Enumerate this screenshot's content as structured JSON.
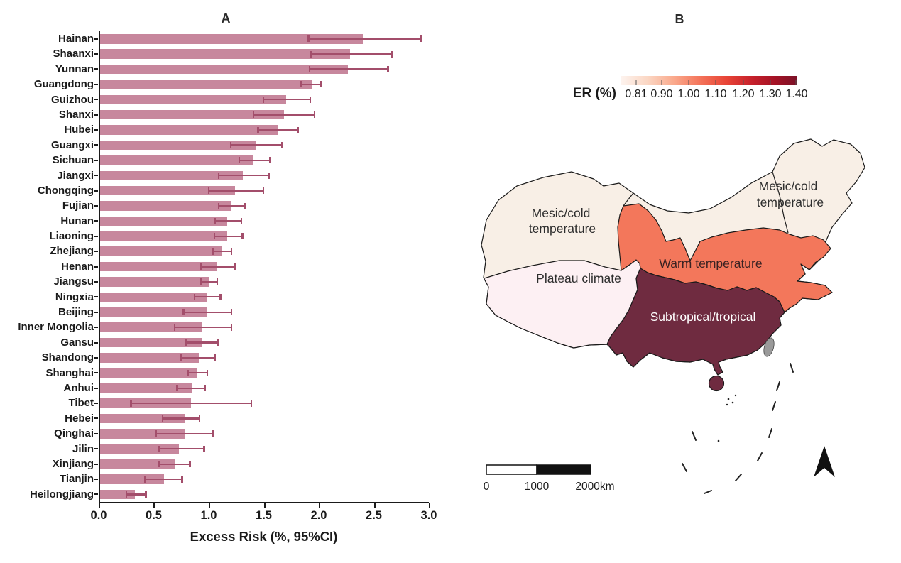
{
  "figure": {
    "panel_a": {
      "title": "A"
    },
    "panel_b": {
      "title": "B",
      "legend_title": "ER (%)",
      "labels": {
        "mesic_nw_line1": "Mesic/cold",
        "mesic_nw_line2": "temperature",
        "mesic_ne_line1": "Mesic/cold",
        "mesic_ne_line2": "temperature",
        "plateau": "Plateau climate",
        "warm": "Warm temperature",
        "subtropical": "Subtropical/tropical"
      }
    }
  },
  "chart_data": [
    {
      "type": "bar",
      "orientation": "horizontal",
      "title": "A",
      "xlabel": "Excess Risk (%, 95%CI)",
      "xlim": [
        0,
        3.0
      ],
      "x_tick_labels": [
        "0.0",
        "0.5",
        "1.0",
        "1.5",
        "2.0",
        "2.5",
        "3.0"
      ],
      "grid": false,
      "bar_color": "#c7879d",
      "error_color": "#a34e6b",
      "categories": [
        "Hainan",
        "Shaanxi",
        "Yunnan",
        "Guangdong",
        "Guizhou",
        "Shanxi",
        "Hubei",
        "Guangxi",
        "Sichuan",
        "Jiangxi",
        "Chongqing",
        "Fujian",
        "Hunan",
        "Liaoning",
        "Zhejiang",
        "Henan",
        "Jiangsu",
        "Ningxia",
        "Beijing",
        "Inner Mongolia",
        "Gansu",
        "Shandong",
        "Shanghai",
        "Anhui",
        "Tibet",
        "Hebei",
        "Qinghai",
        "Jilin",
        "Xinjiang",
        "Tianjin",
        "Heilongjiang"
      ],
      "values": [
        2.4,
        2.28,
        2.26,
        1.93,
        1.7,
        1.68,
        1.62,
        1.42,
        1.39,
        1.3,
        1.23,
        1.19,
        1.16,
        1.16,
        1.11,
        1.07,
        0.99,
        0.97,
        0.97,
        0.93,
        0.93,
        0.9,
        0.88,
        0.84,
        0.83,
        0.78,
        0.77,
        0.72,
        0.68,
        0.58,
        0.32
      ],
      "ci_low": [
        1.9,
        1.92,
        1.91,
        1.83,
        1.49,
        1.4,
        1.44,
        1.19,
        1.27,
        1.08,
        0.99,
        1.08,
        1.05,
        1.04,
        1.03,
        0.92,
        0.92,
        0.86,
        0.76,
        0.68,
        0.78,
        0.74,
        0.8,
        0.7,
        0.28,
        0.57,
        0.51,
        0.54,
        0.54,
        0.41,
        0.24
      ],
      "ci_high": [
        2.93,
        2.66,
        2.63,
        2.02,
        1.92,
        1.96,
        1.81,
        1.66,
        1.55,
        1.54,
        1.49,
        1.32,
        1.29,
        1.3,
        1.2,
        1.23,
        1.07,
        1.1,
        1.2,
        1.2,
        1.08,
        1.05,
        0.98,
        0.96,
        1.38,
        0.91,
        1.03,
        0.95,
        0.82,
        0.75,
        0.42
      ]
    },
    {
      "type": "heatmap",
      "subtype": "choropleth-map",
      "title": "B",
      "legend_title": "ER (%)",
      "colorbar_range": [
        0.81,
        1.4
      ],
      "colorbar_ticks": [
        "0.81",
        "0.90",
        "1.00",
        "1.10",
        "1.20",
        "1.30",
        "1.40"
      ],
      "zones": [
        {
          "name": "Mesic/cold temperature",
          "color": "#f8efe6"
        },
        {
          "name": "Plateau climate",
          "color": "#fdf0f3"
        },
        {
          "name": "Warm temperature",
          "color": "#f3775b"
        },
        {
          "name": "Subtropical/tropical",
          "color": "#6f2b40"
        }
      ],
      "zone_colors": {
        "mesic_cold": "#f8efe6",
        "plateau": "#fdf0f3",
        "warm_temperate": "#f3775b",
        "subtropical": "#6f2b40",
        "taiwan_no_data": "#9a9a9a"
      },
      "scalebar": [
        "0",
        "1000",
        "2000km"
      ]
    }
  ]
}
